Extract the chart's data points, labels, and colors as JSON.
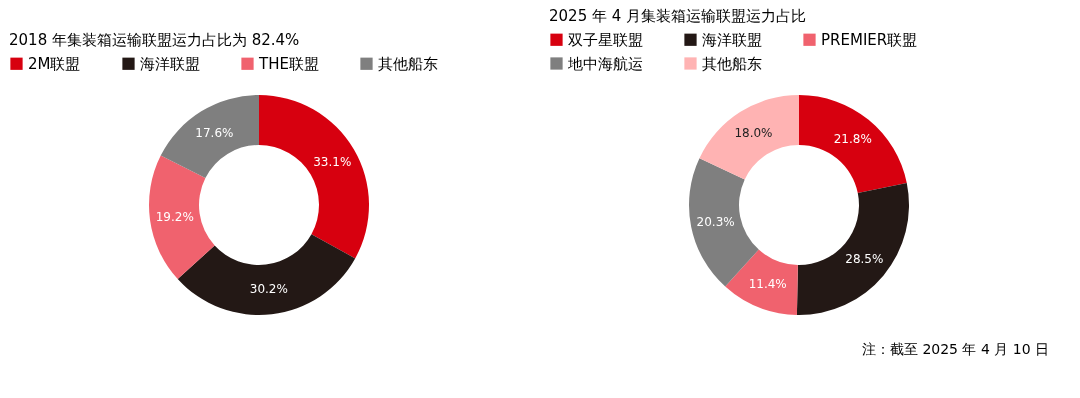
{
  "chart_data": [
    {
      "type": "donut",
      "title": "2018 年集装箱运输联盟运力占比为 82.4%",
      "categories": [
        "2M联盟",
        "海洋联盟",
        "THE联盟",
        "其他船东"
      ],
      "values": [
        33.1,
        30.2,
        19.2,
        17.6
      ],
      "value_labels": [
        "33.1%",
        "30.2%",
        "19.2%",
        "17.6%"
      ],
      "colors": [
        "#d7000f",
        "#231815",
        "#f0626e",
        "#7f7f7f"
      ],
      "legend": "top"
    },
    {
      "type": "donut",
      "title": "2025 年 4 月集装箱运输联盟运力占比",
      "categories": [
        "双子星联盟",
        "海洋联盟",
        "PREMIER联盟",
        "地中海航运",
        "其他船东"
      ],
      "values": [
        21.8,
        28.5,
        11.4,
        20.3,
        18.0
      ],
      "value_labels": [
        "21.8%",
        "28.5%",
        "11.4%",
        "20.3%",
        "18.0%"
      ],
      "colors": [
        "#d7000f",
        "#231815",
        "#f0626e",
        "#7f7f7f",
        "#ffb3b3"
      ],
      "legend": "top",
      "annotations": [
        "注：截至 2025 年 4 月 10 日"
      ]
    }
  ]
}
